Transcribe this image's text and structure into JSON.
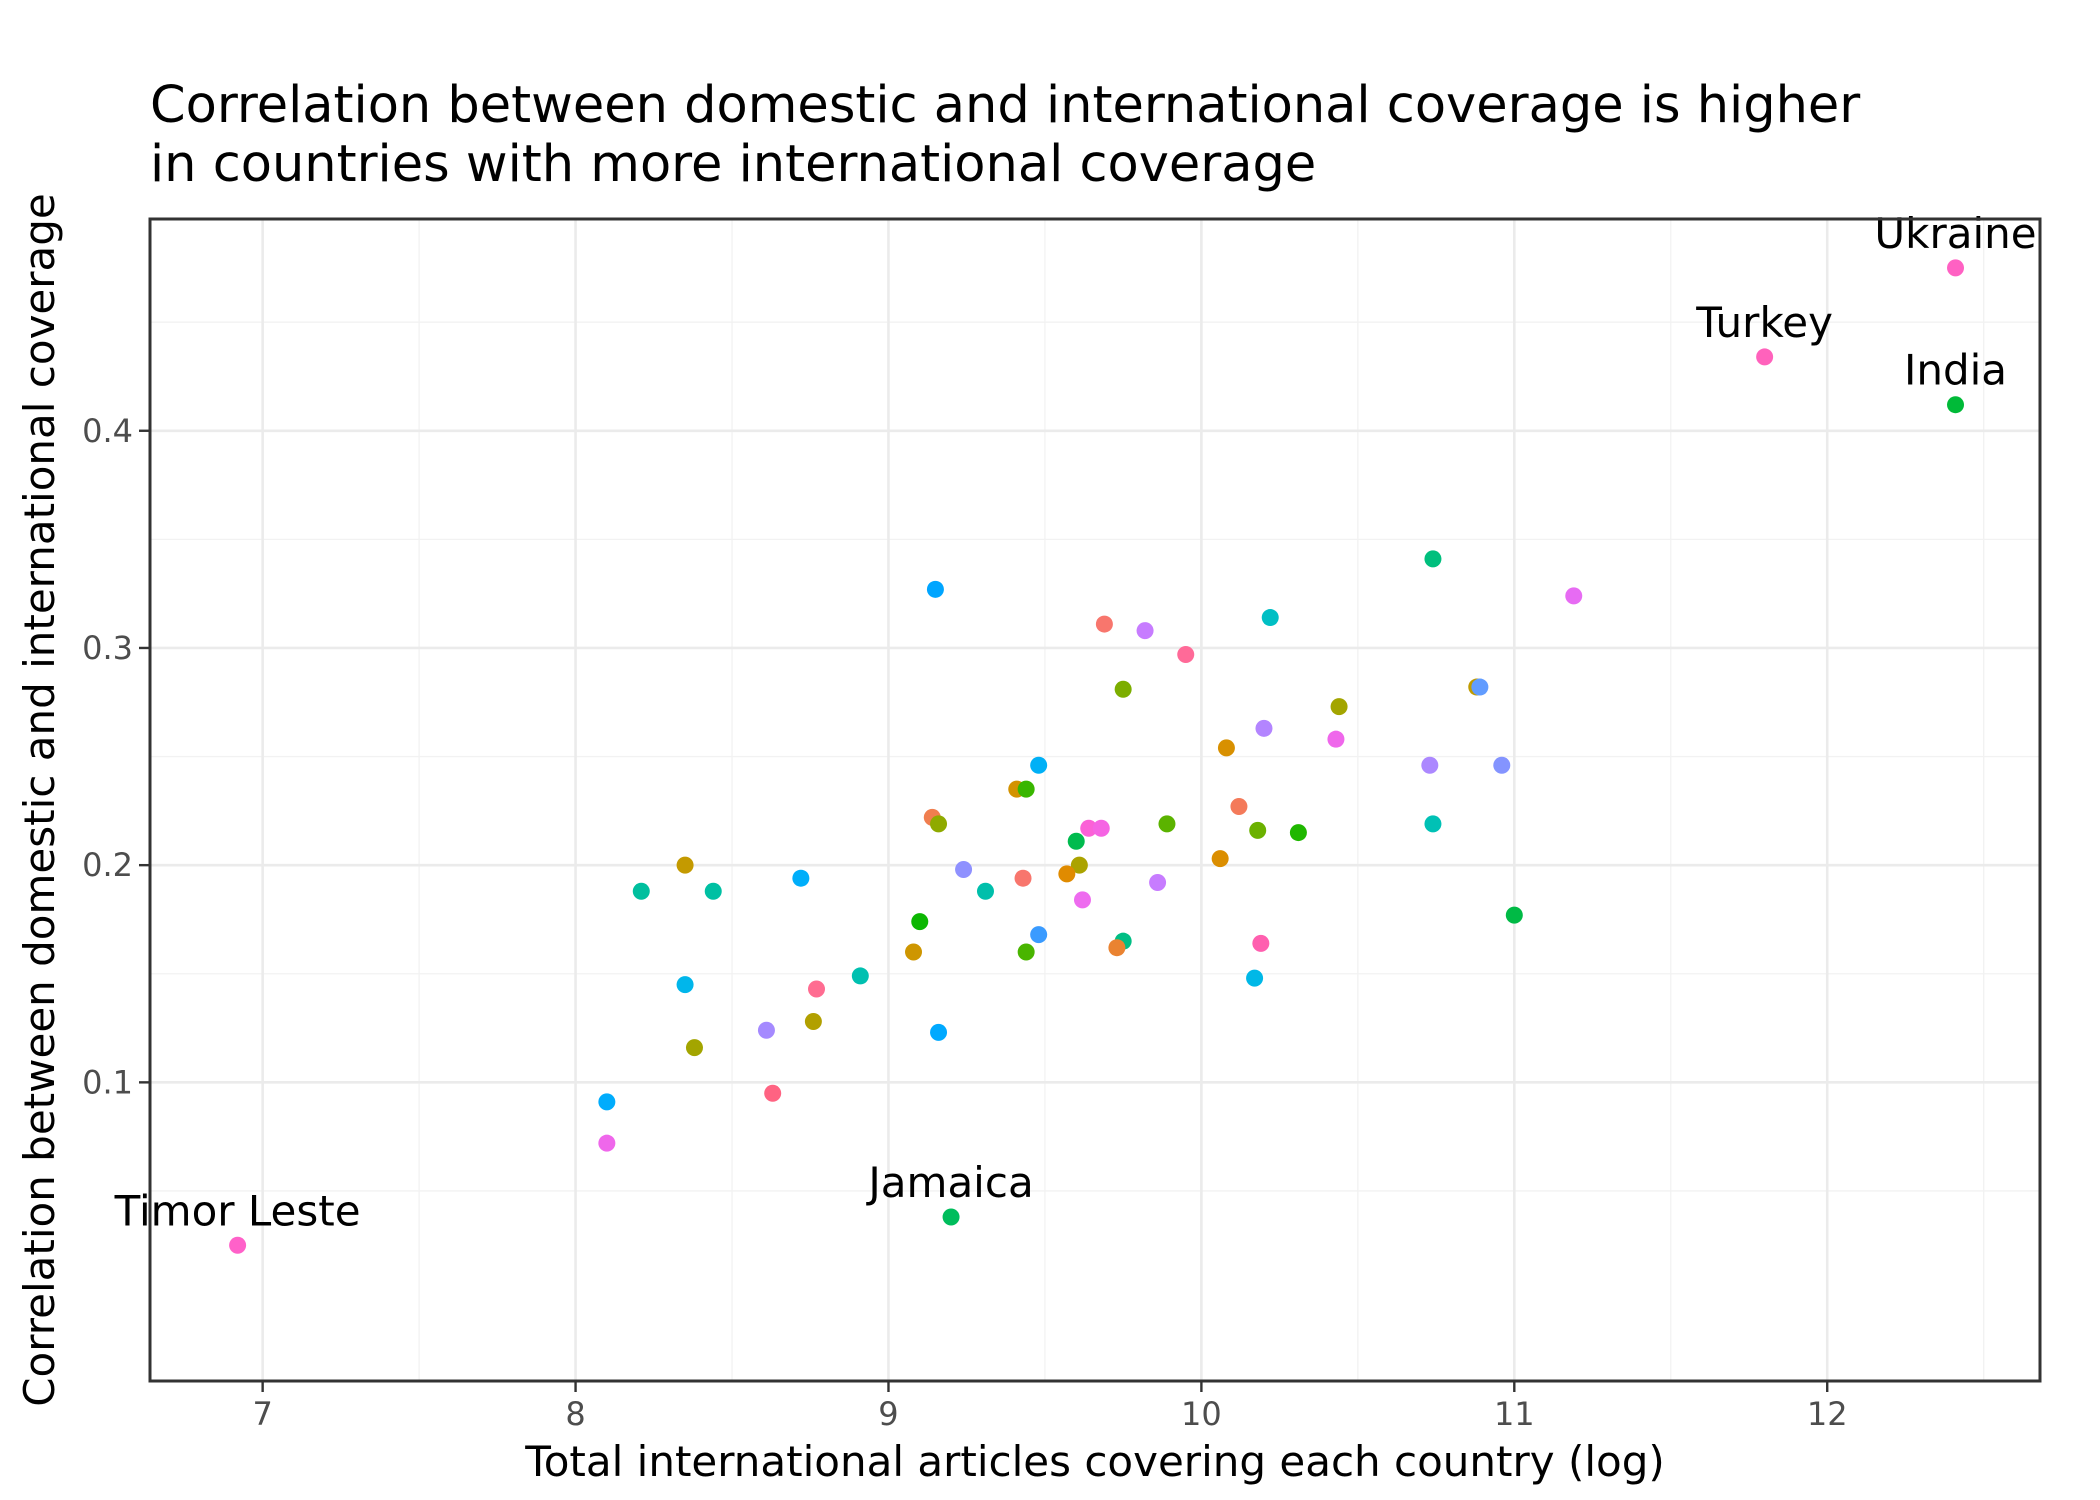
{
  "chart_data": {
    "type": "scatter",
    "title_lines": [
      "Correlation between domestic and international coverage is higher",
      "in countries with more international coverage"
    ],
    "xlabel": "Total international articles covering each country (log)",
    "ylabel": "Correlation between domestic and international coverage",
    "xlim": [
      6.64,
      12.68
    ],
    "ylim": [
      -0.0375,
      0.4975
    ],
    "x_ticks": [
      7,
      8,
      9,
      10,
      11,
      12
    ],
    "x_tick_labels": [
      "7",
      "8",
      "9",
      "10",
      "11",
      "12"
    ],
    "y_ticks": [
      0.1,
      0.2,
      0.3,
      0.4
    ],
    "y_tick_labels": [
      "0.1",
      "0.2",
      "0.3",
      "0.4"
    ],
    "x_minor_ticks": [
      7.5,
      8.5,
      9.5,
      10.5,
      11.5,
      12.5
    ],
    "y_minor_ticks": [
      0.05,
      0.15,
      0.25,
      0.35,
      0.45
    ],
    "grid": true,
    "legend": "none",
    "labeled_points": [
      {
        "label": "Ukraine",
        "x": 12.41,
        "y": 0.475,
        "color": "#FF61C3"
      },
      {
        "label": "Turkey",
        "x": 11.8,
        "y": 0.434,
        "color": "#FF62BC"
      },
      {
        "label": "India",
        "x": 12.41,
        "y": 0.412,
        "color": "#00BA38"
      },
      {
        "label": "Jamaica",
        "x": 9.2,
        "y": 0.038,
        "color": "#00BD5C"
      },
      {
        "label": "Timor Leste",
        "x": 6.92,
        "y": 0.025,
        "color": "#FF61C9"
      }
    ],
    "points": [
      {
        "x": 9.15,
        "y": 0.327,
        "color": "#00A5FF"
      },
      {
        "x": 10.74,
        "y": 0.341,
        "color": "#00BF7D"
      },
      {
        "x": 11.19,
        "y": 0.324,
        "color": "#E76BF3"
      },
      {
        "x": 9.69,
        "y": 0.311,
        "color": "#F8766D"
      },
      {
        "x": 9.82,
        "y": 0.308,
        "color": "#C77CFF"
      },
      {
        "x": 10.22,
        "y": 0.314,
        "color": "#00BFC4"
      },
      {
        "x": 9.95,
        "y": 0.297,
        "color": "#FF6A98"
      },
      {
        "x": 9.75,
        "y": 0.281,
        "color": "#7CAE00"
      },
      {
        "x": 10.88,
        "y": 0.282,
        "color": "#C09B00"
      },
      {
        "x": 10.89,
        "y": 0.282,
        "color": "#619CFF"
      },
      {
        "x": 10.44,
        "y": 0.273,
        "color": "#A3A500"
      },
      {
        "x": 10.2,
        "y": 0.263,
        "color": "#B385FF"
      },
      {
        "x": 10.43,
        "y": 0.258,
        "color": "#EF67EB"
      },
      {
        "x": 10.08,
        "y": 0.254,
        "color": "#D89000"
      },
      {
        "x": 9.48,
        "y": 0.246,
        "color": "#00B0F6"
      },
      {
        "x": 10.73,
        "y": 0.246,
        "color": "#AC88FF"
      },
      {
        "x": 10.96,
        "y": 0.246,
        "color": "#8494FF"
      },
      {
        "x": 9.41,
        "y": 0.235,
        "color": "#D39200"
      },
      {
        "x": 9.44,
        "y": 0.235,
        "color": "#39B600"
      },
      {
        "x": 9.14,
        "y": 0.222,
        "color": "#F07E4F"
      },
      {
        "x": 9.16,
        "y": 0.219,
        "color": "#8FAA00"
      },
      {
        "x": 9.89,
        "y": 0.219,
        "color": "#5BB300"
      },
      {
        "x": 10.12,
        "y": 0.227,
        "color": "#F47A5A"
      },
      {
        "x": 10.74,
        "y": 0.219,
        "color": "#00C1B5"
      },
      {
        "x": 9.64,
        "y": 0.217,
        "color": "#FB61D7"
      },
      {
        "x": 9.68,
        "y": 0.217,
        "color": "#F564E3"
      },
      {
        "x": 10.18,
        "y": 0.216,
        "color": "#6BB100"
      },
      {
        "x": 10.31,
        "y": 0.215,
        "color": "#1FB700"
      },
      {
        "x": 9.6,
        "y": 0.211,
        "color": "#00BB4E"
      },
      {
        "x": 8.35,
        "y": 0.2,
        "color": "#C49A00"
      },
      {
        "x": 9.61,
        "y": 0.2,
        "color": "#ABA300"
      },
      {
        "x": 10.06,
        "y": 0.203,
        "color": "#DB8E00"
      },
      {
        "x": 9.24,
        "y": 0.198,
        "color": "#8F91FF"
      },
      {
        "x": 9.57,
        "y": 0.196,
        "color": "#E08B00"
      },
      {
        "x": 8.72,
        "y": 0.194,
        "color": "#00AEFA"
      },
      {
        "x": 9.43,
        "y": 0.194,
        "color": "#F8766D"
      },
      {
        "x": 9.86,
        "y": 0.192,
        "color": "#C77CFF"
      },
      {
        "x": 8.21,
        "y": 0.188,
        "color": "#00BF9E"
      },
      {
        "x": 8.44,
        "y": 0.188,
        "color": "#00C0A3"
      },
      {
        "x": 9.31,
        "y": 0.188,
        "color": "#00BFAB"
      },
      {
        "x": 9.62,
        "y": 0.184,
        "color": "#EE6BEF"
      },
      {
        "x": 11.0,
        "y": 0.177,
        "color": "#00BA45"
      },
      {
        "x": 9.1,
        "y": 0.174,
        "color": "#0CB702"
      },
      {
        "x": 9.48,
        "y": 0.168,
        "color": "#3A9BFF"
      },
      {
        "x": 9.75,
        "y": 0.165,
        "color": "#00BE84"
      },
      {
        "x": 9.73,
        "y": 0.162,
        "color": "#EA8331"
      },
      {
        "x": 10.19,
        "y": 0.164,
        "color": "#FF5FAF"
      },
      {
        "x": 9.08,
        "y": 0.16,
        "color": "#CE9600"
      },
      {
        "x": 9.44,
        "y": 0.16,
        "color": "#49B500"
      },
      {
        "x": 8.91,
        "y": 0.149,
        "color": "#00C0B0"
      },
      {
        "x": 10.17,
        "y": 0.148,
        "color": "#00B8E7"
      },
      {
        "x": 8.35,
        "y": 0.145,
        "color": "#00B6EB"
      },
      {
        "x": 8.77,
        "y": 0.143,
        "color": "#FF6C91"
      },
      {
        "x": 8.76,
        "y": 0.128,
        "color": "#B2A000"
      },
      {
        "x": 8.61,
        "y": 0.124,
        "color": "#A58AFF"
      },
      {
        "x": 9.16,
        "y": 0.123,
        "color": "#00A9FF"
      },
      {
        "x": 8.38,
        "y": 0.116,
        "color": "#A3A500"
      },
      {
        "x": 8.63,
        "y": 0.095,
        "color": "#FF6382"
      },
      {
        "x": 8.1,
        "y": 0.091,
        "color": "#00ACFC"
      },
      {
        "x": 8.1,
        "y": 0.072,
        "color": "#EF67EB"
      }
    ]
  }
}
